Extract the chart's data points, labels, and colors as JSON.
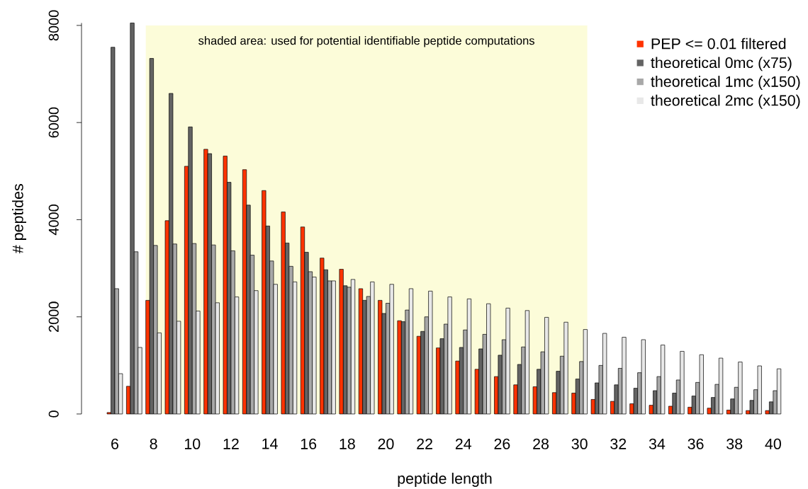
{
  "chart_data": {
    "type": "bar",
    "xlabel": "peptide length",
    "ylabel": "# peptides",
    "categories": [
      "6",
      null,
      "8",
      null,
      "10",
      null,
      "12",
      null,
      "14",
      null,
      "16",
      null,
      "18",
      null,
      "20",
      null,
      "22",
      null,
      "24",
      null,
      "26",
      null,
      "28",
      null,
      "30",
      null,
      "32",
      null,
      "34",
      null,
      "36",
      null,
      "38",
      null,
      "40"
    ],
    "ylim": [
      0,
      8050
    ],
    "yticks": [
      0,
      2000,
      4000,
      6000,
      8000
    ],
    "legend": "top right",
    "series": [
      {
        "name": "PEP <= 0.01 filtered",
        "color": "#ff3300",
        "values": [
          30,
          570,
          2340,
          3980,
          5100,
          5450,
          5310,
          5030,
          4600,
          4160,
          3850,
          3210,
          2980,
          2580,
          2340,
          1920,
          1600,
          1360,
          1090,
          920,
          770,
          600,
          560,
          440,
          430,
          300,
          260,
          210,
          180,
          160,
          140,
          120,
          80,
          70,
          70
        ]
      },
      {
        "name": "theoretical 0mc (x75)",
        "color": "#636363",
        "values": [
          7550,
          8050,
          7320,
          6600,
          5910,
          5360,
          4770,
          4300,
          3870,
          3520,
          3330,
          2970,
          2640,
          2340,
          2070,
          1900,
          1700,
          1550,
          1370,
          1340,
          1210,
          1020,
          920,
          880,
          720,
          640,
          600,
          530,
          480,
          430,
          370,
          340,
          310,
          280,
          250
        ]
      },
      {
        "name": "theoretical 1mc (x150)",
        "color": "#a8a8a8",
        "values": [
          2580,
          3340,
          3470,
          3500,
          3510,
          3480,
          3360,
          3270,
          3150,
          3040,
          2930,
          2740,
          2610,
          2420,
          2280,
          2140,
          2000,
          1850,
          1730,
          1640,
          1530,
          1380,
          1280,
          1190,
          1080,
          1000,
          940,
          850,
          770,
          700,
          650,
          610,
          550,
          500,
          480
        ]
      },
      {
        "name": "theoretical 2mc (x150)",
        "color": "#e8e8e8",
        "values": [
          830,
          1370,
          1670,
          1910,
          2120,
          2290,
          2410,
          2540,
          2670,
          2720,
          2820,
          2740,
          2770,
          2720,
          2670,
          2580,
          2530,
          2410,
          2370,
          2270,
          2180,
          2130,
          1990,
          1890,
          1740,
          1660,
          1580,
          1530,
          1420,
          1290,
          1220,
          1150,
          1070,
          990,
          930
        ]
      }
    ],
    "bands": [
      {
        "axis": "x",
        "from": "8",
        "to": "30",
        "label": "shaded area: used for potential identifiable peptide computations",
        "color": "#fcfcd9"
      }
    ]
  }
}
